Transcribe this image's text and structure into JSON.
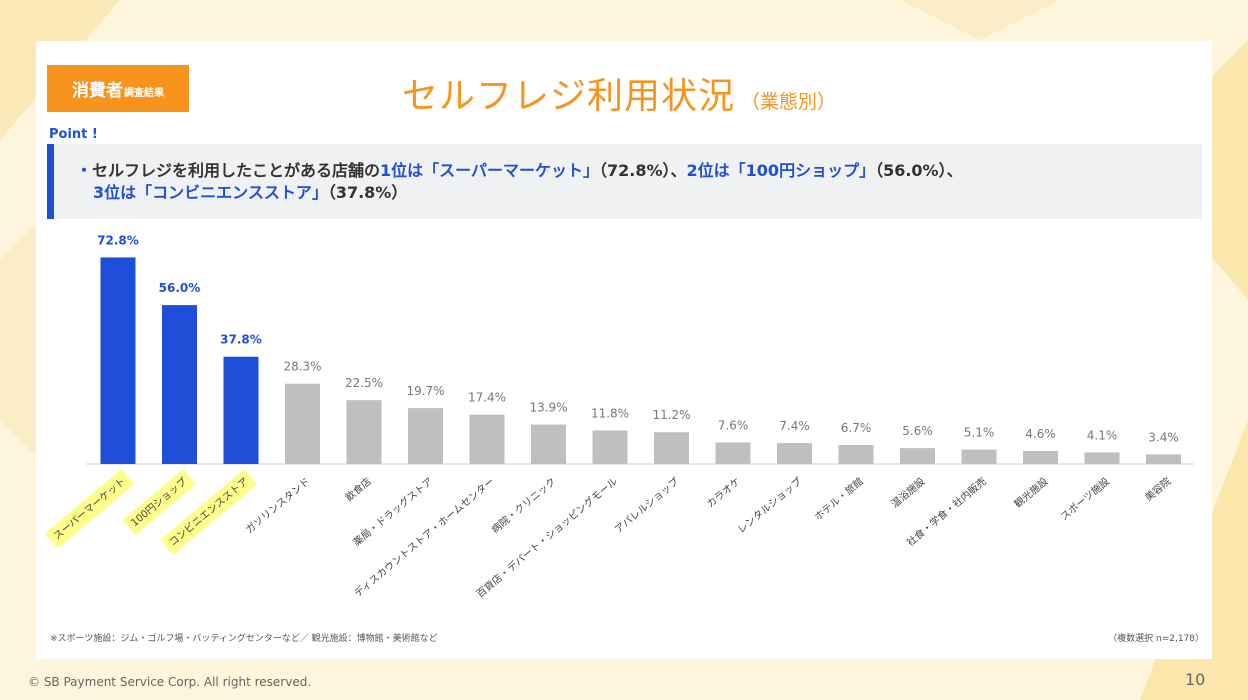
{
  "badge": {
    "main": "消費者",
    "sub": "調査結果"
  },
  "title": {
    "main": "セルフレジ利用状況",
    "sub": "（業態別）"
  },
  "point": {
    "label": "Point !",
    "bullet": "・",
    "t1": "セルフレジを利用したことがある店舗の",
    "t2": "1位は「スーパーマーケット」",
    "t3": "（72.8%）、",
    "t4": "2位は「100円ショップ」",
    "t5": "（56.0%）、",
    "t6": "3位は「コンビニエンスストア」",
    "t7": "（37.8%）"
  },
  "colors": {
    "highlight_bar": "#1f4fd8",
    "other_bar": "#bfbfbf",
    "highlight_label_bg": "#fdfd8c",
    "accent": "#f7941d"
  },
  "chart_data": {
    "type": "bar",
    "categories": [
      "スーパーマーケット",
      "100円ショップ",
      "コンビニエンスストア",
      "ガソリンスタンド",
      "飲食店",
      "薬局・ドラッグストア",
      "ディスカウントストア・ホームセンター",
      "病院・クリニック",
      "百貨店・デパート・ショッピングモール",
      "アパレルショップ",
      "カラオケ",
      "レンタルショップ",
      "ホテル・旅館",
      "温浴施設",
      "社食・学食・社内販売",
      "観光施設",
      "スポーツ施設",
      "美容院"
    ],
    "values": [
      72.8,
      56.0,
      37.8,
      28.3,
      22.5,
      19.7,
      17.4,
      13.9,
      11.8,
      11.2,
      7.6,
      7.4,
      6.7,
      5.6,
      5.1,
      4.6,
      4.1,
      3.4
    ],
    "value_labels": [
      "72.8%",
      "56.0%",
      "37.8%",
      "28.3%",
      "22.5%",
      "19.7%",
      "17.4%",
      "13.9%",
      "11.8%",
      "11.2%",
      "7.6%",
      "7.4%",
      "6.7%",
      "5.6%",
      "5.1%",
      "4.6%",
      "4.1%",
      "3.4%"
    ],
    "highlighted_count": 3,
    "ylim": [
      0,
      80
    ],
    "grid": false,
    "legend": "none"
  },
  "footnote": "※スポーツ施設：ジム・ゴルフ場・バッティングセンターなど／ 観光施設：博物館・美術館など",
  "sample_note": "（複数選択 n=2,178）",
  "copyright": "© SB Payment Service Corp. All right reserved.",
  "page_number": "10"
}
